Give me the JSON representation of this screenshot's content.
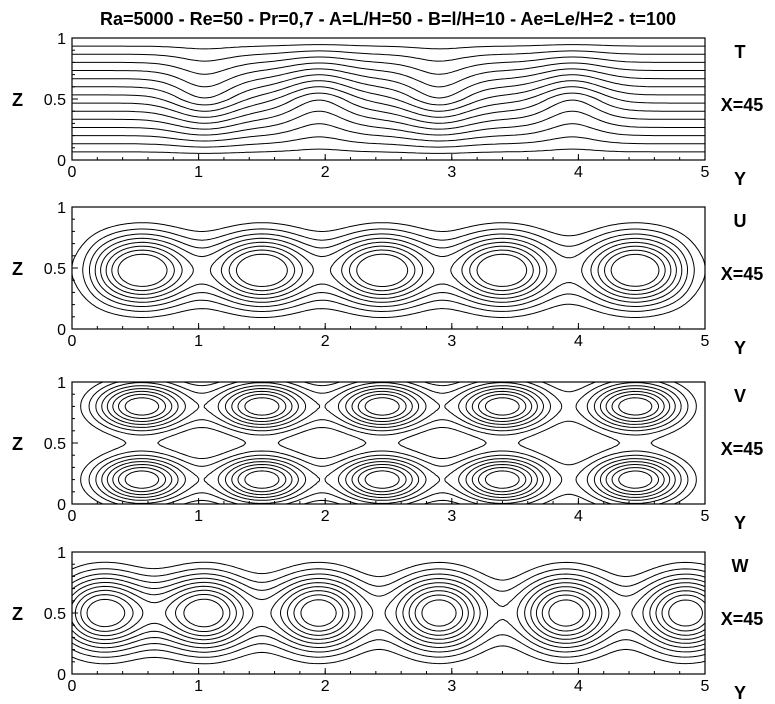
{
  "title": "Ra=5000 - Re=50 - Pr=0,7 - A=L/H=50 - B=l/H=10 - Ae=Le/H=2 - t=100",
  "chart_data": [
    {
      "type": "contour",
      "field": "T",
      "station": "X=45",
      "xlabel": "Y",
      "ylabel": "Z",
      "xlim": [
        0,
        5
      ],
      "ylim": [
        0,
        1
      ],
      "xticks": [
        "0",
        "1",
        "2",
        "3",
        "4",
        "5"
      ],
      "yticks": [
        "0",
        "0.5",
        "1"
      ],
      "contour_centers_y": [
        1.05,
        1.95,
        2.9,
        3.95
      ],
      "contour_levels": 14
    },
    {
      "type": "contour",
      "field": "U",
      "station": "X=45",
      "xlabel": "Y",
      "ylabel": "Z",
      "xlim": [
        0,
        5
      ],
      "ylim": [
        0,
        1
      ],
      "xticks": [
        "0",
        "1",
        "2",
        "3",
        "4",
        "5"
      ],
      "yticks": [
        "0",
        "0.5",
        "1"
      ],
      "cell_centers_y": [
        0.55,
        1.5,
        2.45,
        3.4,
        4.45
      ],
      "contour_levels": 8
    },
    {
      "type": "contour",
      "field": "V",
      "station": "X=45",
      "xlabel": "Y",
      "ylabel": "Z",
      "xlim": [
        0,
        5
      ],
      "ylim": [
        0,
        1
      ],
      "xticks": [
        "0",
        "1",
        "2",
        "3",
        "4",
        "5"
      ],
      "yticks": [
        "0",
        "0.5",
        "1"
      ],
      "cell_centers_y": [
        0.55,
        1.5,
        2.45,
        3.4,
        4.45
      ],
      "cell_centers_z": [
        0.2,
        0.8
      ],
      "contour_levels": 8
    },
    {
      "type": "contour",
      "field": "W",
      "station": "X=45",
      "xlabel": "Y",
      "ylabel": "Z",
      "xlim": [
        0,
        5
      ],
      "ylim": [
        0,
        1
      ],
      "xticks": [
        "0",
        "1",
        "2",
        "3",
        "4",
        "5"
      ],
      "yticks": [
        "0",
        "0.5",
        "1"
      ],
      "cell_centers_y": [
        0.25,
        1.05,
        1.95,
        2.9,
        3.9,
        4.85
      ],
      "contour_levels": 9
    }
  ]
}
